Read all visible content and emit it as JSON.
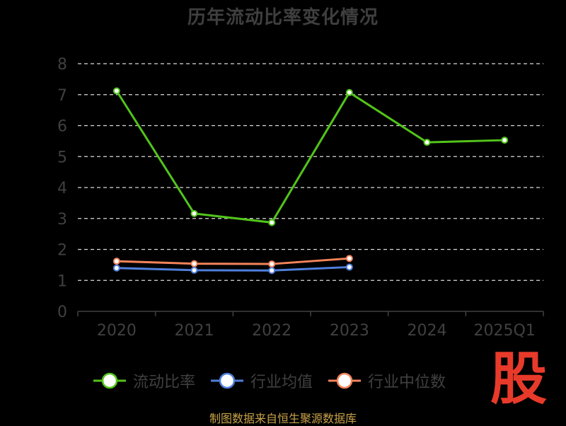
{
  "chart_data": {
    "type": "line",
    "title": "历年流动比率变化情况",
    "categories": [
      "2020",
      "2021",
      "2022",
      "2023",
      "2024",
      "2025Q1"
    ],
    "ylim": [
      0,
      8
    ],
    "yticks": [
      0,
      1,
      2,
      3,
      4,
      5,
      6,
      7,
      8
    ],
    "grid": true,
    "legend_position": "bottom",
    "series": [
      {
        "name": "流动比率",
        "color": "#52c41a",
        "values": [
          7.12,
          3.16,
          2.87,
          7.07,
          5.46,
          5.53
        ]
      },
      {
        "name": "行业均值",
        "color": "#4f7fdc",
        "values": [
          1.4,
          1.33,
          1.32,
          1.43,
          null,
          null
        ]
      },
      {
        "name": "行业中位数",
        "color": "#f4845a",
        "values": [
          1.62,
          1.54,
          1.53,
          1.71,
          null,
          null
        ]
      }
    ]
  },
  "footer": {
    "source": "制图数据来自恒生聚源数据库"
  },
  "watermark": {
    "text": "股"
  }
}
